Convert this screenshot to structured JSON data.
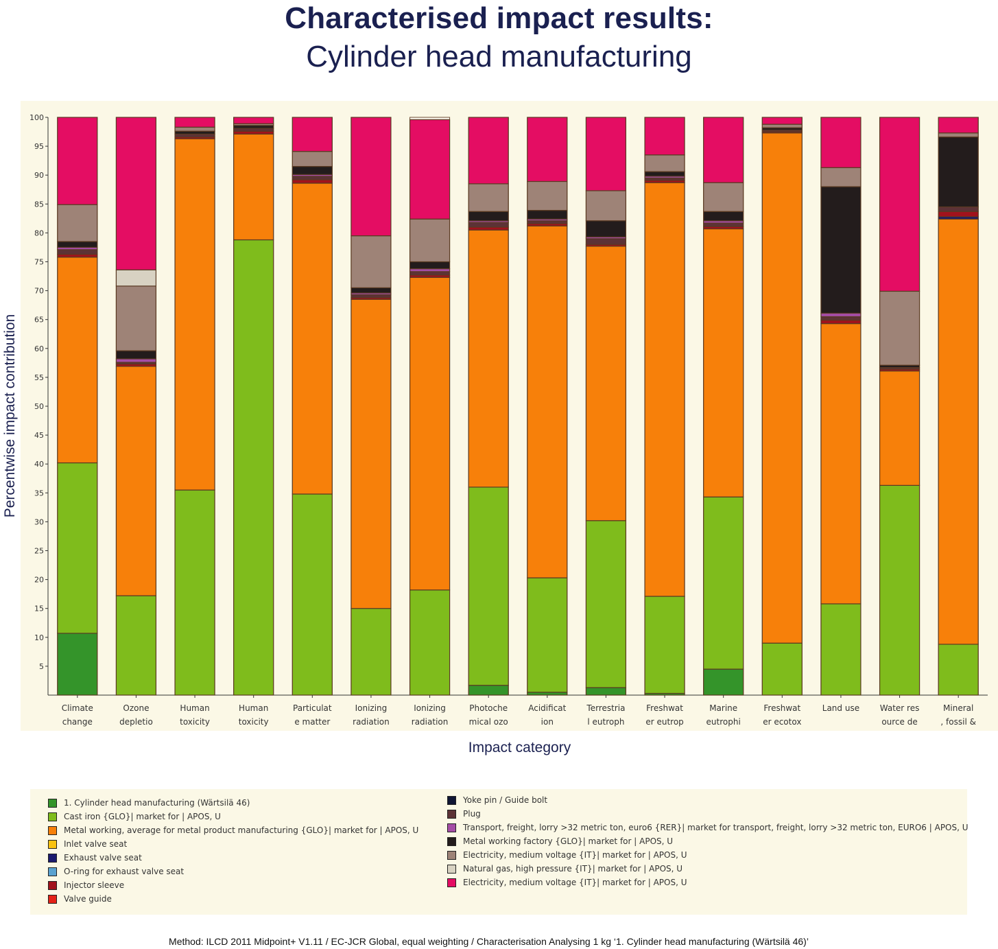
{
  "title": "Characterised impact results:",
  "subtitle": "Cylinder head manufacturing",
  "method_note": "Method: ILCD 2011 Midpoint+ V1.11 / EC-JCR Global, equal weighting / Characterisation Analysing 1 kg ‘1. Cylinder head manufacturing (Wärtsilä 46)’",
  "chart_data": {
    "type": "bar",
    "stacked": true,
    "ylabel": "Percentwise impact contribution",
    "xlabel": "Impact category",
    "ylim": [
      0,
      100
    ],
    "yticks": [
      5,
      10,
      15,
      20,
      25,
      30,
      35,
      40,
      45,
      50,
      55,
      60,
      65,
      70,
      75,
      80,
      85,
      90,
      95,
      100
    ],
    "grid": false,
    "legend_position": "bottom",
    "categories": [
      [
        "Climate",
        "change"
      ],
      [
        "Ozone",
        "depletio"
      ],
      [
        "Human",
        "toxicity"
      ],
      [
        "Human",
        "toxicity"
      ],
      [
        "Particulat",
        "e matter"
      ],
      [
        "Ionizing",
        "radiation"
      ],
      [
        "Ionizing",
        "radiation"
      ],
      [
        "Photoche",
        "mical ozo"
      ],
      [
        "Acidificat",
        "ion"
      ],
      [
        "Terrestria",
        "l eutroph"
      ],
      [
        "Freshwat",
        "er eutrop"
      ],
      [
        "Marine",
        "eutrophi"
      ],
      [
        "Freshwat",
        "er ecotox"
      ],
      [
        "Land use",
        ""
      ],
      [
        "Water res",
        "ource de"
      ],
      [
        "Mineral",
        ", fossil &"
      ]
    ],
    "series": [
      {
        "name": "1. Cylinder head manufacturing (Wärtsilä 46)",
        "color": "#34942a",
        "values": [
          10.7,
          0,
          0,
          0,
          0,
          0,
          0,
          1.7,
          0.5,
          1.3,
          0.3,
          4.5,
          0,
          0,
          0,
          0
        ]
      },
      {
        "name": "Cast iron {GLO}| market for | APOS, U",
        "color": "#7fbc1c",
        "values": [
          29.5,
          17.2,
          35.5,
          78.8,
          34.8,
          15.0,
          18.2,
          34.3,
          19.8,
          28.9,
          16.8,
          29.8,
          9.0,
          15.8,
          36.3,
          8.8
        ]
      },
      {
        "name": "Metal working, average for metal product manufacturing {GLO}| market for | APOS, U",
        "color": "#f7800a",
        "values": [
          35.6,
          39.7,
          60.8,
          18.3,
          53.8,
          53.5,
          54.1,
          44.5,
          60.9,
          47.5,
          71.6,
          46.4,
          88.3,
          48.5,
          19.8,
          73.6
        ]
      },
      {
        "name": "Inlet valve seat",
        "color": "#f9c211",
        "values": [
          0,
          0,
          0,
          0,
          0,
          0,
          0,
          0,
          0,
          0,
          0,
          0,
          0,
          0,
          0,
          0
        ]
      },
      {
        "name": "Exhaust valve seat",
        "color": "#1b1a6e",
        "values": [
          0,
          0,
          0,
          0,
          0,
          0,
          0,
          0,
          0,
          0,
          0,
          0,
          0,
          0,
          0,
          0.4
        ]
      },
      {
        "name": "O-ring for exhaust valve seat",
        "color": "#5aa2d0",
        "values": [
          0,
          0,
          0,
          0,
          0,
          0,
          0,
          0,
          0,
          0,
          0,
          0,
          0,
          0,
          0,
          0
        ]
      },
      {
        "name": "Injector sleeve",
        "color": "#a1121c",
        "values": [
          0.5,
          0.4,
          0.3,
          0.5,
          0.6,
          0.3,
          0.4,
          0.5,
          0.4,
          0.3,
          0.4,
          0.4,
          0.2,
          0.6,
          0.3,
          0.9
        ]
      },
      {
        "name": "Valve guide",
        "color": "#e42218",
        "values": [
          0,
          0,
          0,
          0,
          0,
          0,
          0,
          0,
          0,
          0,
          0,
          0,
          0,
          0,
          0,
          0
        ]
      },
      {
        "name": "Yoke pin / Guide bolt",
        "color": "#101634",
        "values": [
          0,
          0,
          0,
          0,
          0,
          0,
          0,
          0,
          0,
          0,
          0,
          0,
          0,
          0,
          0,
          0
        ]
      },
      {
        "name": "Plug",
        "color": "#5c3236",
        "values": [
          0.8,
          0.3,
          0.5,
          0.5,
          0.6,
          0.5,
          0.6,
          0.8,
          0.5,
          1.0,
          0.4,
          0.6,
          0.3,
          0.6,
          0.3,
          0.8
        ]
      },
      {
        "name": "Transport, freight, lorry >32 metric ton, euro6 {RER}| market for transport, freight, lorry >32 metric ton, EURO6 | APOS, U",
        "color": "#a54da6",
        "values": [
          0.4,
          0.6,
          0,
          0,
          0.3,
          0.3,
          0.5,
          0.3,
          0.3,
          0.3,
          0.3,
          0.4,
          0,
          0.6,
          0,
          0
        ]
      },
      {
        "name": "Metal working factory {GLO}| market for | APOS, U",
        "color": "#231c1c",
        "values": [
          1.0,
          1.4,
          0.5,
          0.5,
          1.4,
          0.9,
          1.2,
          1.6,
          1.5,
          2.8,
          0.8,
          1.6,
          0.4,
          21.9,
          0.4,
          12.1
        ]
      },
      {
        "name": "Electricity, medium voltage {IT}| market for | APOS, U",
        "color": "#9e8377",
        "values": [
          6.4,
          11.2,
          0.7,
          0.3,
          2.6,
          9.0,
          7.4,
          4.8,
          5.0,
          5.2,
          2.9,
          5.0,
          0.6,
          3.3,
          12.8,
          0.7
        ]
      },
      {
        "name": "Natural gas, high pressure {IT}| market for | APOS, U",
        "color": "#d8d2c2",
        "values": [
          0,
          2.8,
          0,
          0,
          0,
          0,
          0,
          0,
          0,
          0,
          0,
          0,
          0,
          0,
          0,
          0
        ]
      },
      {
        "name": "Electricity, medium voltage {IT}| market for | APOS, U",
        "color": "#e40d63",
        "values": [
          15.1,
          26.4,
          1.7,
          1.1,
          5.9,
          20.5,
          17.2,
          11.5,
          11.1,
          12.7,
          6.5,
          11.3,
          1.2,
          8.7,
          30.1,
          2.7
        ]
      }
    ],
    "legend_left": [
      "1. Cylinder head manufacturing (Wärtsilä 46)",
      "Cast iron {GLO}| market for | APOS, U",
      "Metal working, average for metal product manufacturing {GLO}| market for | APOS, U",
      "Inlet valve seat",
      "Exhaust valve seat",
      "O-ring for exhaust valve seat",
      "Injector sleeve",
      "Valve guide"
    ],
    "legend_left_colors": [
      "#34942a",
      "#7fbc1c",
      "#f7800a",
      "#f9c211",
      "#1b1a6e",
      "#5aa2d0",
      "#a1121c",
      "#e42218"
    ],
    "legend_right": [
      "Yoke pin / Guide bolt",
      "Plug",
      "Transport, freight, lorry >32 metric ton, euro6 {RER}| market for transport, freight, lorry >32 metric ton, EURO6 | APOS, U",
      "Metal working factory {GLO}| market for | APOS, U",
      "Electricity, medium voltage {IT}| market for | APOS, U",
      "Natural gas, high pressure {IT}| market for | APOS, U",
      "Electricity, medium voltage {IT}| market for | APOS, U"
    ],
    "legend_right_colors": [
      "#101634",
      "#5c3236",
      "#a54da6",
      "#231c1c",
      "#9e8377",
      "#d8d2c2",
      "#e40d63"
    ]
  }
}
